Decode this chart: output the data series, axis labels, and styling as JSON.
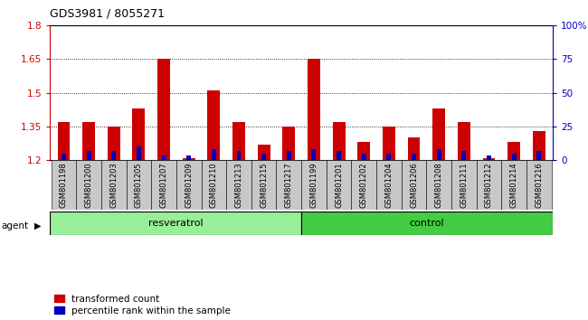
{
  "title": "GDS3981 / 8055271",
  "samples": [
    "GSM801198",
    "GSM801200",
    "GSM801203",
    "GSM801205",
    "GSM801207",
    "GSM801209",
    "GSM801210",
    "GSM801213",
    "GSM801215",
    "GSM801217",
    "GSM801199",
    "GSM801201",
    "GSM801202",
    "GSM801204",
    "GSM801206",
    "GSM801208",
    "GSM801211",
    "GSM801212",
    "GSM801214",
    "GSM801216"
  ],
  "red_values": [
    1.37,
    1.37,
    1.35,
    1.43,
    1.65,
    1.21,
    1.51,
    1.37,
    1.27,
    1.35,
    1.65,
    1.37,
    1.28,
    1.35,
    1.3,
    1.43,
    1.37,
    1.21,
    1.28,
    1.33
  ],
  "blue_values": [
    0.03,
    0.04,
    0.04,
    0.06,
    0.02,
    0.02,
    0.05,
    0.04,
    0.03,
    0.04,
    0.05,
    0.04,
    0.03,
    0.03,
    0.03,
    0.05,
    0.04,
    0.02,
    0.03,
    0.04
  ],
  "resveratrol_count": 10,
  "control_count": 10,
  "ylim_left": [
    1.2,
    1.8
  ],
  "ylim_right": [
    0,
    100
  ],
  "yticks_left": [
    1.2,
    1.35,
    1.5,
    1.65,
    1.8
  ],
  "yticks_right": [
    0,
    25,
    50,
    75,
    100
  ],
  "ytick_labels_left": [
    "1.2",
    "1.35",
    "1.5",
    "1.65",
    "1.8"
  ],
  "ytick_labels_right": [
    "0",
    "25",
    "50",
    "75",
    "100%"
  ],
  "red_color": "#cc0000",
  "blue_color": "#0000bb",
  "bg_plot": "#ffffff",
  "bg_xticklabel": "#cccccc",
  "bg_label_resv": "#99ee99",
  "bg_label_ctrl": "#44cc44",
  "agent_label": "agent",
  "resv_label": "resveratrol",
  "ctrl_label": "control",
  "legend_red": "transformed count",
  "legend_blue": "percentile rank within the sample",
  "tick_color_left": "#cc0000",
  "tick_color_right": "#0000bb"
}
